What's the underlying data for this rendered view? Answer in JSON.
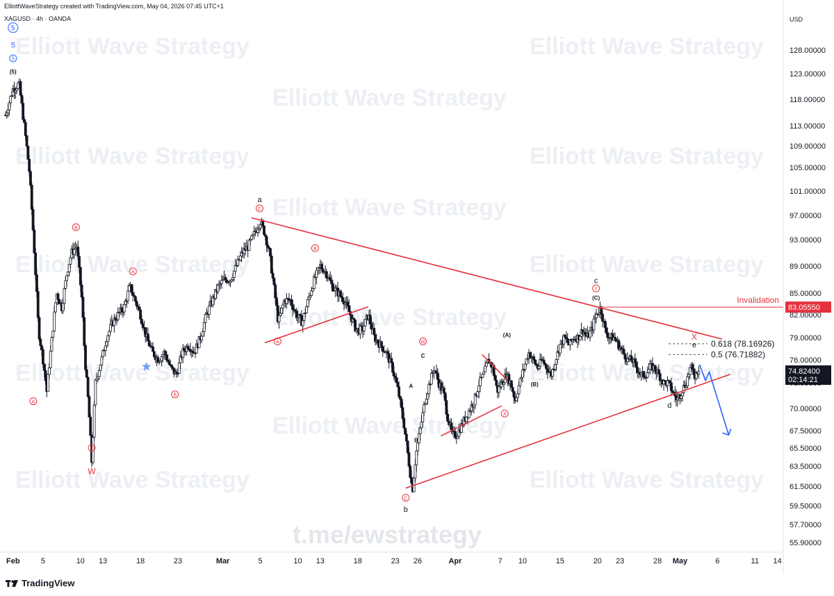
{
  "header": {
    "created_by": "ElliottWaveStrategy created with TradingView.com, May 04, 2026 07:45 UTC+1",
    "symbol_line": "XAGUSD · 4h · OANDA"
  },
  "branding": {
    "tradingview_label": "TradingView",
    "watermark_text": "Elliott Wave Strategy",
    "center_watermark": "t.me/ewstrategy"
  },
  "colors": {
    "accent_red": "#e5323e",
    "blue_wave": "#2962ff",
    "candle": "#131722",
    "watermark": "#eceff3"
  },
  "chart_data": {
    "type": "candlestick",
    "timeframe": "4h",
    "currency_axis_label": "USD",
    "y_ticks": [
      128,
      123,
      118,
      113,
      109,
      105,
      101,
      97,
      93,
      89,
      85,
      82,
      79,
      76,
      73,
      70,
      67.5,
      65.5,
      63.5,
      61.5,
      59.5,
      57.7,
      55.9
    ],
    "y_tick_labels": [
      "128.00000",
      "123.00000",
      "118.00000",
      "113.00000",
      "109.00000",
      "105.00000",
      "101.00000",
      "97.00000",
      "93.00000",
      "89.00000",
      "85.00000",
      "82.00000",
      "79.00000",
      "76.00000",
      "73.00000",
      "70.00000",
      "67.50000",
      "65.50000",
      "63.50000",
      "61.50000",
      "59.50000",
      "57.70000",
      "55.90000"
    ],
    "x_ticks": [
      {
        "label": "Feb",
        "day": 1,
        "bold": true
      },
      {
        "label": "5",
        "day": 5
      },
      {
        "label": "10",
        "day": 10
      },
      {
        "label": "13",
        "day": 13
      },
      {
        "label": "18",
        "day": 18
      },
      {
        "label": "23",
        "day": 23
      },
      {
        "label": "Mar",
        "day": 29,
        "bold": true
      },
      {
        "label": "5",
        "day": 34
      },
      {
        "label": "10",
        "day": 39
      },
      {
        "label": "13",
        "day": 42
      },
      {
        "label": "18",
        "day": 47
      },
      {
        "label": "23",
        "day": 52
      },
      {
        "label": "26",
        "day": 55
      },
      {
        "label": "Apr",
        "day": 60,
        "bold": true
      },
      {
        "label": "7",
        "day": 66
      },
      {
        "label": "10",
        "day": 69
      },
      {
        "label": "15",
        "day": 74
      },
      {
        "label": "20",
        "day": 79
      },
      {
        "label": "23",
        "day": 82
      },
      {
        "label": "28",
        "day": 87
      },
      {
        "label": "May",
        "day": 90,
        "bold": true
      },
      {
        "label": "6",
        "day": 95
      },
      {
        "label": "11",
        "day": 100
      },
      {
        "label": "14",
        "day": 103
      }
    ],
    "price_path": [
      [
        0,
        115
      ],
      [
        1,
        120
      ],
      [
        1.8,
        121
      ],
      [
        2.5,
        113
      ],
      [
        3.2,
        104
      ],
      [
        3.8,
        92
      ],
      [
        4.4,
        80
      ],
      [
        5,
        76
      ],
      [
        5.5,
        72
      ],
      [
        6.2,
        79
      ],
      [
        6.8,
        85
      ],
      [
        7.5,
        83
      ],
      [
        8.2,
        88
      ],
      [
        8.8,
        91
      ],
      [
        9.5,
        92
      ],
      [
        10.2,
        84
      ],
      [
        10.6,
        76
      ],
      [
        11.1,
        70
      ],
      [
        11.5,
        64
      ],
      [
        12,
        73
      ],
      [
        12.8,
        76
      ],
      [
        13.5,
        79
      ],
      [
        14.3,
        81
      ],
      [
        15,
        82
      ],
      [
        15.8,
        83
      ],
      [
        16.6,
        86
      ],
      [
        17.3,
        84
      ],
      [
        18,
        82
      ],
      [
        18.8,
        79
      ],
      [
        19.6,
        77
      ],
      [
        20.4,
        76
      ],
      [
        21.2,
        77
      ],
      [
        22,
        75
      ],
      [
        22.8,
        74
      ],
      [
        23.6,
        77
      ],
      [
        24.4,
        78
      ],
      [
        25.2,
        77
      ],
      [
        26,
        79
      ],
      [
        26.8,
        82
      ],
      [
        27.6,
        84
      ],
      [
        28.4,
        86
      ],
      [
        29.2,
        87
      ],
      [
        30,
        87
      ],
      [
        30.8,
        89
      ],
      [
        31.6,
        91
      ],
      [
        32.4,
        92
      ],
      [
        33.2,
        94
      ],
      [
        34,
        96
      ],
      [
        34.6,
        94
      ],
      [
        35.2,
        91
      ],
      [
        35.8,
        86
      ],
      [
        36.4,
        81
      ],
      [
        37.2,
        84
      ],
      [
        38,
        84
      ],
      [
        38.8,
        82
      ],
      [
        39.6,
        81
      ],
      [
        40.4,
        84
      ],
      [
        41.2,
        87
      ],
      [
        42,
        89
      ],
      [
        42.8,
        88
      ],
      [
        43.6,
        86
      ],
      [
        44.4,
        85
      ],
      [
        45.2,
        84
      ],
      [
        46,
        82
      ],
      [
        46.8,
        80
      ],
      [
        47.6,
        80
      ],
      [
        48.4,
        82
      ],
      [
        49.2,
        79
      ],
      [
        50,
        78
      ],
      [
        50.8,
        77
      ],
      [
        51.6,
        75
      ],
      [
        52.4,
        72
      ],
      [
        53.2,
        68
      ],
      [
        53.8,
        64
      ],
      [
        54.3,
        61
      ],
      [
        54.8,
        65
      ],
      [
        55.4,
        68
      ],
      [
        56,
        71
      ],
      [
        56.6,
        73
      ],
      [
        57.2,
        75
      ],
      [
        57.8,
        73
      ],
      [
        58.4,
        72
      ],
      [
        59,
        69
      ],
      [
        59.6,
        67
      ],
      [
        60.2,
        67
      ],
      [
        60.8,
        68
      ],
      [
        61.4,
        69
      ],
      [
        62,
        70
      ],
      [
        62.6,
        71
      ],
      [
        63.2,
        73
      ],
      [
        63.8,
        74
      ],
      [
        64.4,
        76
      ],
      [
        65,
        75
      ],
      [
        65.6,
        72
      ],
      [
        66.2,
        73
      ],
      [
        66.8,
        74
      ],
      [
        67.4,
        73
      ],
      [
        68,
        71
      ],
      [
        68.6,
        73
      ],
      [
        69.2,
        75
      ],
      [
        69.8,
        77
      ],
      [
        70.4,
        76
      ],
      [
        71,
        75
      ],
      [
        71.6,
        76
      ],
      [
        72.2,
        75
      ],
      [
        72.8,
        74
      ],
      [
        73.4,
        76
      ],
      [
        74,
        78
      ],
      [
        74.6,
        79
      ],
      [
        75.2,
        78
      ],
      [
        75.8,
        79
      ],
      [
        76.4,
        79
      ],
      [
        77,
        80
      ],
      [
        77.6,
        79
      ],
      [
        78.2,
        80
      ],
      [
        78.8,
        82
      ],
      [
        79.4,
        83
      ],
      [
        80,
        80
      ],
      [
        80.6,
        79
      ],
      [
        81.2,
        79
      ],
      [
        81.8,
        78
      ],
      [
        82.4,
        77
      ],
      [
        83,
        76
      ],
      [
        83.6,
        76
      ],
      [
        84.2,
        75
      ],
      [
        84.8,
        74
      ],
      [
        85.4,
        74
      ],
      [
        86,
        75
      ],
      [
        86.6,
        75
      ],
      [
        87.2,
        74
      ],
      [
        87.8,
        73
      ],
      [
        88.4,
        73
      ],
      [
        89,
        72
      ],
      [
        89.6,
        71
      ],
      [
        90.2,
        72
      ],
      [
        90.8,
        73
      ],
      [
        91.4,
        75
      ],
      [
        92,
        74
      ],
      [
        92.5,
        74.82
      ]
    ],
    "current_price": "74.82400",
    "countdown": "02:14:21",
    "invalidation": {
      "label": "Invalidation",
      "price": 83.0555,
      "price_label": "83.05550"
    },
    "fib_levels": [
      {
        "label": "0.618 (78.16926)",
        "price": 78.16926
      },
      {
        "label": "0.5 (76.71882)",
        "price": 76.71882
      }
    ],
    "wave_labels": [
      {
        "text": "5",
        "day": 1,
        "price": 132,
        "style": "circled-blue-big"
      },
      {
        "text": "5",
        "day": 1,
        "price": 128.5,
        "style": "blue"
      },
      {
        "text": "5",
        "day": 1,
        "price": 125.8,
        "style": "circled-blue"
      },
      {
        "text": "(5)",
        "day": 1,
        "price": 123,
        "style": "black-small"
      },
      {
        "text": "A",
        "day": 3.7,
        "price": 70.6,
        "style": "circled-red"
      },
      {
        "text": "B",
        "day": 9.4,
        "price": 94.7,
        "style": "circled-red"
      },
      {
        "text": "C",
        "day": 11.5,
        "price": 65.3,
        "style": "circled-red"
      },
      {
        "text": "W",
        "day": 11.5,
        "price": 62.7,
        "style": "red"
      },
      {
        "text": "A",
        "day": 17,
        "price": 87.9,
        "style": "circled-red"
      },
      {
        "text": "B",
        "day": 22.6,
        "price": 71.4,
        "style": "circled-red"
      },
      {
        "text": "a",
        "day": 33.9,
        "price": 99.2,
        "style": "black"
      },
      {
        "text": "C",
        "day": 33.9,
        "price": 97.8,
        "style": "circled-red"
      },
      {
        "text": "A",
        "day": 36.3,
        "price": 78.2,
        "style": "circled-red"
      },
      {
        "text": "B",
        "day": 41.3,
        "price": 91.4,
        "style": "circled-red"
      },
      {
        "text": "W",
        "day": 55.7,
        "price": 78.2,
        "style": "circled-red"
      },
      {
        "text": "C",
        "day": 55.7,
        "price": 76.3,
        "style": "black-small"
      },
      {
        "text": "A",
        "day": 54.1,
        "price": 72.4,
        "style": "black-small"
      },
      {
        "text": "B",
        "day": 54.8,
        "price": 66.2,
        "style": "black-small"
      },
      {
        "text": "C",
        "day": 53.4,
        "price": 60.1,
        "style": "circled-red"
      },
      {
        "text": "b",
        "day": 53.4,
        "price": 58.9,
        "style": "black"
      },
      {
        "text": "X",
        "day": 66.6,
        "price": 69.2,
        "style": "circled-red"
      },
      {
        "text": "(A)",
        "day": 66.9,
        "price": 79.1,
        "style": "black-small"
      },
      {
        "text": "(B)",
        "day": 70.6,
        "price": 72.6,
        "style": "black-small"
      },
      {
        "text": "c",
        "day": 78.8,
        "price": 86.5,
        "style": "black"
      },
      {
        "text": "Y",
        "day": 78.8,
        "price": 85.4,
        "style": "circled-red"
      },
      {
        "text": "(C)",
        "day": 78.8,
        "price": 84.1,
        "style": "black-small"
      },
      {
        "text": "d",
        "day": 88.6,
        "price": 70.1,
        "style": "black"
      },
      {
        "text": "X",
        "day": 91.9,
        "price": 78.7,
        "style": "red"
      },
      {
        "text": "e",
        "day": 91.9,
        "price": 77.7,
        "style": "black"
      }
    ],
    "trendlines": [
      {
        "name": "triangle-upper",
        "from": [
          32.8,
          96.6
        ],
        "to": [
          95.6,
          78.8
        ],
        "color": "red"
      },
      {
        "name": "triangle-lower",
        "from": [
          53.4,
          61.3
        ],
        "to": [
          96.7,
          74.1
        ],
        "color": "red"
      },
      {
        "name": "wedge-a",
        "from": [
          34.6,
          78.3
        ],
        "to": [
          48.4,
          83.1
        ],
        "color": "red"
      },
      {
        "name": "wedge-x-lower",
        "from": [
          58.1,
          66.9
        ],
        "to": [
          66.2,
          70.3
        ],
        "color": "red"
      },
      {
        "name": "wedge-x-upper",
        "from": [
          63.6,
          76.7
        ],
        "to": [
          66.9,
          73.4
        ],
        "color": "red"
      }
    ],
    "projection": [
      [
        92.6,
        75.4
      ],
      [
        93.4,
        73.3
      ],
      [
        93.9,
        74.4
      ],
      [
        96.5,
        67
      ]
    ],
    "grid": false,
    "legend": "none"
  }
}
